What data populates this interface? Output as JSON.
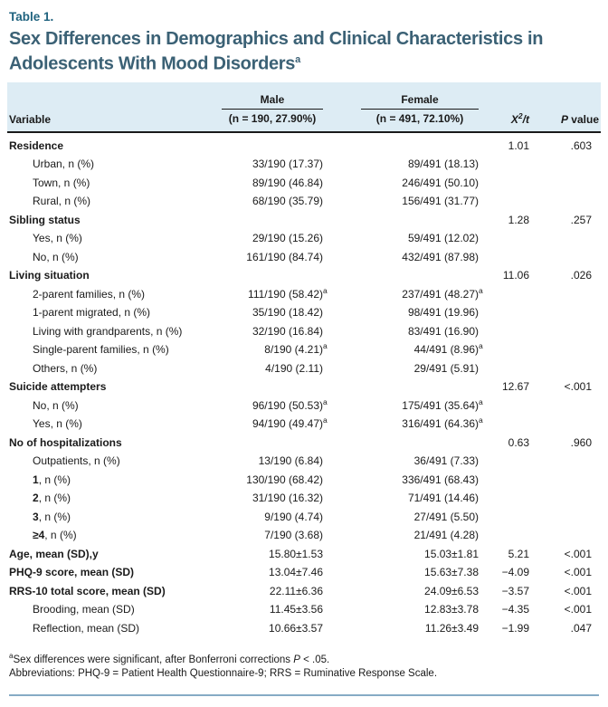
{
  "table_label": "Table 1.",
  "title": "Sex Differences in Demographics and Clinical Characteristics in Adolescents With Mood Disorders",
  "title_sup": "a",
  "colors": {
    "label": "#20637f",
    "title": "#3b6175",
    "header_bg": "#ddecf4",
    "text": "#1a1a1a",
    "bottom_rule": "#86abc5"
  },
  "header": {
    "variable": "Variable",
    "male": {
      "name": "Male",
      "n": "(n = 190, 27.90%)"
    },
    "female": {
      "name": "Female",
      "n": "(n = 491, 72.10%)"
    },
    "stat": {
      "x": "X",
      "sup": "2",
      "rest": "/t"
    },
    "p": {
      "italic": "P",
      "rest": " value"
    }
  },
  "rows": [
    {
      "label": "Residence",
      "bold": true,
      "indent": false,
      "bp": "",
      "male": "",
      "male_sup": "",
      "female": "",
      "female_sup": "",
      "x2t": "1.01",
      "p": ".603"
    },
    {
      "label": "Urban, n (%)",
      "bold": false,
      "indent": true,
      "bp": "",
      "male": "33/190 (17.37)",
      "male_sup": "",
      "female": "89/491 (18.13)",
      "female_sup": "",
      "x2t": "",
      "p": ""
    },
    {
      "label": "Town, n (%)",
      "bold": false,
      "indent": true,
      "bp": "",
      "male": "89/190 (46.84)",
      "male_sup": "",
      "female": "246/491 (50.10)",
      "female_sup": "",
      "x2t": "",
      "p": ""
    },
    {
      "label": "Rural, n (%)",
      "bold": false,
      "indent": true,
      "bp": "",
      "male": "68/190 (35.79)",
      "male_sup": "",
      "female": "156/491 (31.77)",
      "female_sup": "",
      "x2t": "",
      "p": ""
    },
    {
      "label": "Sibling status",
      "bold": true,
      "indent": false,
      "bp": "",
      "male": "",
      "male_sup": "",
      "female": "",
      "female_sup": "",
      "x2t": "1.28",
      "p": ".257"
    },
    {
      "label": "Yes, n (%)",
      "bold": false,
      "indent": true,
      "bp": "",
      "male": "29/190 (15.26)",
      "male_sup": "",
      "female": "59/491 (12.02)",
      "female_sup": "",
      "x2t": "",
      "p": ""
    },
    {
      "label": "No, n (%)",
      "bold": false,
      "indent": true,
      "bp": "",
      "male": "161/190 (84.74)",
      "male_sup": "",
      "female": "432/491 (87.98)",
      "female_sup": "",
      "x2t": "",
      "p": ""
    },
    {
      "label": "Living situation",
      "bold": true,
      "indent": false,
      "bp": "",
      "male": "",
      "male_sup": "",
      "female": "",
      "female_sup": "",
      "x2t": "11.06",
      "p": ".026"
    },
    {
      "label": "2-parent families, n (%)",
      "bold": false,
      "indent": true,
      "bp": "",
      "male": "111/190 (58.42)",
      "male_sup": "a",
      "female": "237/491 (48.27)",
      "female_sup": "a",
      "x2t": "",
      "p": ""
    },
    {
      "label": "1-parent migrated, n (%)",
      "bold": false,
      "indent": true,
      "bp": "",
      "male": "35/190 (18.42)",
      "male_sup": "",
      "female": "98/491 (19.96)",
      "female_sup": "",
      "x2t": "",
      "p": ""
    },
    {
      "label": "Living with grandparents, n (%)",
      "bold": false,
      "indent": true,
      "bp": "",
      "male": "32/190 (16.84)",
      "male_sup": "",
      "female": "83/491 (16.90)",
      "female_sup": "",
      "x2t": "",
      "p": ""
    },
    {
      "label": "Single-parent families, n (%)",
      "bold": false,
      "indent": true,
      "bp": "",
      "male": "8/190 (4.21)",
      "male_sup": "a",
      "female": "44/491 (8.96)",
      "female_sup": "a",
      "x2t": "",
      "p": ""
    },
    {
      "label": "Others, n (%)",
      "bold": false,
      "indent": true,
      "bp": "",
      "male": "4/190 (2.11)",
      "male_sup": "",
      "female": "29/491 (5.91)",
      "female_sup": "",
      "x2t": "",
      "p": ""
    },
    {
      "label": "Suicide attempters",
      "bold": true,
      "indent": false,
      "bp": "",
      "male": "",
      "male_sup": "",
      "female": "",
      "female_sup": "",
      "x2t": "12.67",
      "p": "<.001"
    },
    {
      "label": "No, n (%)",
      "bold": false,
      "indent": true,
      "bp": "",
      "male": "96/190 (50.53)",
      "male_sup": "a",
      "female": "175/491 (35.64)",
      "female_sup": "a",
      "x2t": "",
      "p": ""
    },
    {
      "label": "Yes, n (%)",
      "bold": false,
      "indent": true,
      "bp": "",
      "male": "94/190 (49.47)",
      "male_sup": "a",
      "female": "316/491 (64.36)",
      "female_sup": "a",
      "x2t": "",
      "p": ""
    },
    {
      "label": "No of hospitalizations",
      "bold": true,
      "indent": false,
      "bp": "",
      "male": "",
      "male_sup": "",
      "female": "",
      "female_sup": "",
      "x2t": "0.63",
      "p": ".960"
    },
    {
      "label": "Outpatients, n (%)",
      "bold": false,
      "indent": true,
      "bp": "",
      "male": "13/190 (6.84)",
      "male_sup": "",
      "female": "36/491 (7.33)",
      "female_sup": "",
      "x2t": "",
      "p": ""
    },
    {
      "label": ", n (%)",
      "bold": false,
      "indent": true,
      "bp": "1",
      "male": "130/190 (68.42)",
      "male_sup": "",
      "female": "336/491 (68.43)",
      "female_sup": "",
      "x2t": "",
      "p": ""
    },
    {
      "label": ", n (%)",
      "bold": false,
      "indent": true,
      "bp": "2",
      "male": "31/190 (16.32)",
      "male_sup": "",
      "female": "71/491 (14.46)",
      "female_sup": "",
      "x2t": "",
      "p": ""
    },
    {
      "label": ", n (%)",
      "bold": false,
      "indent": true,
      "bp": "3",
      "male": "9/190 (4.74)",
      "male_sup": "",
      "female": "27/491 (5.50)",
      "female_sup": "",
      "x2t": "",
      "p": ""
    },
    {
      "label": ", n (%)",
      "bold": false,
      "indent": true,
      "bp": "≥4",
      "male": "7/190 (3.68)",
      "male_sup": "",
      "female": "21/491 (4.28)",
      "female_sup": "",
      "x2t": "",
      "p": ""
    },
    {
      "label": "Age, mean (SD),y",
      "bold": true,
      "indent": false,
      "bp": "",
      "male": "15.80±1.53",
      "male_sup": "",
      "female": "15.03±1.81",
      "female_sup": "",
      "x2t": "5.21",
      "p": "<.001"
    },
    {
      "label": "PHQ-9 score, mean (SD)",
      "bold": true,
      "indent": false,
      "bp": "",
      "male": "13.04±7.46",
      "male_sup": "",
      "female": "15.63±7.38",
      "female_sup": "",
      "x2t": "−4.09",
      "p": "<.001"
    },
    {
      "label": "RRS-10 total score, mean (SD)",
      "bold": true,
      "indent": false,
      "bp": "",
      "male": "22.11±6.36",
      "male_sup": "",
      "female": "24.09±6.53",
      "female_sup": "",
      "x2t": "−3.57",
      "p": "<.001"
    },
    {
      "label": "Brooding, mean (SD)",
      "bold": false,
      "indent": true,
      "bp": "",
      "male": "11.45±3.56",
      "male_sup": "",
      "female": "12.83±3.78",
      "female_sup": "",
      "x2t": "−4.35",
      "p": "<.001"
    },
    {
      "label": "Reflection, mean (SD)",
      "bold": false,
      "indent": true,
      "bp": "",
      "male": "10.66±3.57",
      "male_sup": "",
      "female": "11.26±3.49",
      "female_sup": "",
      "x2t": "−1.99",
      "p": ".047"
    }
  ],
  "footnotes": {
    "fn1": {
      "sup": "a",
      "text": "Sex differences were significant, after Bonferroni corrections ",
      "stat": "P",
      "tail": " < .05."
    },
    "fn2": "Abbreviations: PHQ-9 = Patient Health Questionnaire-9; RRS = Ruminative Response Scale."
  }
}
